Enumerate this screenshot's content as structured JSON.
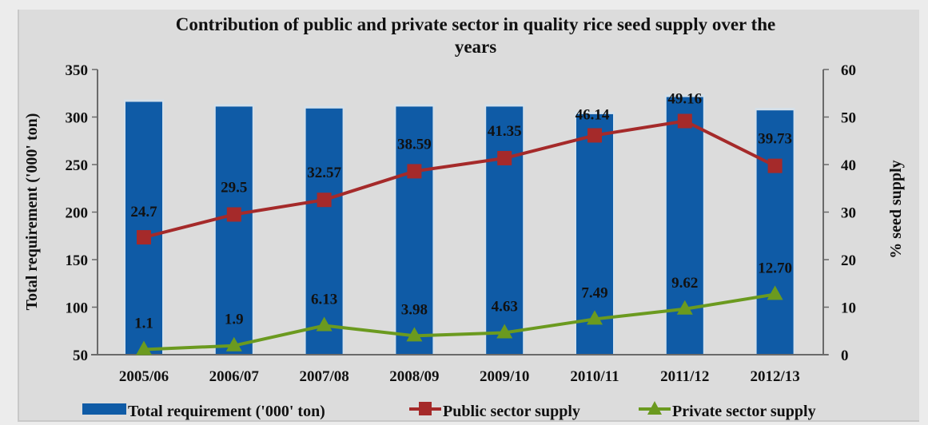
{
  "chart_data": {
    "type": "bar+line",
    "title_lines": [
      "Contribution of public and private sector in quality rice seed supply over the",
      "years"
    ],
    "title": "Contribution of public and private sector in quality rice seed supply over the years",
    "categories": [
      "2005/06",
      "2006/07",
      "2007/08",
      "2008/09",
      "2009/10",
      "2010/11",
      "2011/12",
      "2012/13"
    ],
    "ylabel_left": "Total requirement  ('000' ton)",
    "ylabel_right": "% seed supply",
    "ylim_left": [
      50,
      350
    ],
    "yticks_left": [
      50,
      100,
      150,
      200,
      250,
      300,
      350
    ],
    "ylim_right": [
      0,
      60
    ],
    "yticks_right": [
      0,
      10,
      20,
      30,
      40,
      50,
      60
    ],
    "grid": false,
    "legend_position": "bottom",
    "series": [
      {
        "name": "Total requirement ('000' ton)",
        "type": "bar",
        "axis": "left",
        "color": "#0f5ba6",
        "values": [
          316,
          311,
          309,
          311,
          311,
          303,
          321,
          307
        ],
        "labels": [
          null,
          null,
          null,
          null,
          null,
          null,
          null,
          null
        ]
      },
      {
        "name": "Public sector supply",
        "type": "line",
        "axis": "right",
        "color": "#a52a2a",
        "marker": "square",
        "values": [
          24.7,
          29.5,
          32.57,
          38.59,
          41.35,
          46.14,
          49.16,
          39.73
        ],
        "labels": [
          "24.7",
          "29.5",
          "32.57",
          "38.59",
          "41.35",
          "46.14",
          "49.16",
          "39.73"
        ]
      },
      {
        "name": "Private sector supply",
        "type": "line",
        "axis": "right",
        "color": "#6b9a1f",
        "marker": "triangle",
        "values": [
          1.1,
          1.9,
          6.13,
          3.98,
          4.63,
          7.49,
          9.62,
          12.7
        ],
        "labels": [
          "1.1",
          "1.9",
          "6.13",
          "3.98",
          "4.63",
          "7.49",
          "9.62",
          "12.70"
        ]
      }
    ]
  }
}
